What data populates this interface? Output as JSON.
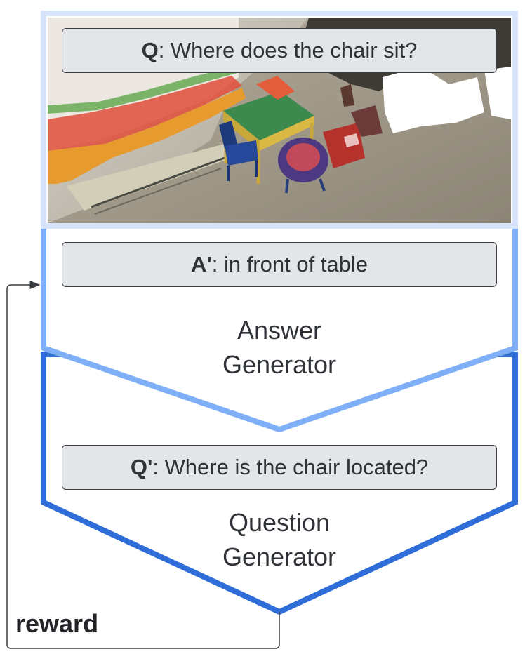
{
  "scene": {
    "question_prefix": "Q",
    "question_text": ": Where does the chair sit?"
  },
  "answer_generator": {
    "answer_prefix": "A'",
    "answer_text": ": in front of table",
    "label_line1": "Answer",
    "label_line2": "Generator"
  },
  "question_generator": {
    "question_prefix": "Q'",
    "question_text": ": Where is the chair located?",
    "label_line1": "Question",
    "label_line2": "Generator"
  },
  "feedback": {
    "label": "reward"
  },
  "colors": {
    "scene_frame": "#d6e3fb",
    "answer_generator": "#7fb0f7",
    "question_generator": "#2f6ed8"
  }
}
